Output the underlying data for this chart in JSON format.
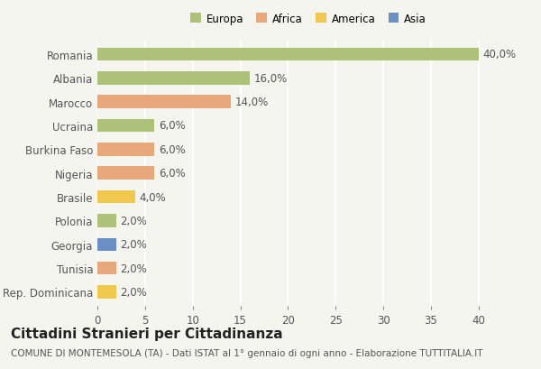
{
  "countries": [
    "Romania",
    "Albania",
    "Marocco",
    "Ucraina",
    "Burkina Faso",
    "Nigeria",
    "Brasile",
    "Polonia",
    "Georgia",
    "Tunisia",
    "Rep. Dominicana"
  ],
  "values": [
    40.0,
    16.0,
    14.0,
    6.0,
    6.0,
    6.0,
    4.0,
    2.0,
    2.0,
    2.0,
    2.0
  ],
  "categories": [
    "Europa",
    "Europa",
    "Africa",
    "Europa",
    "Africa",
    "Africa",
    "America",
    "Europa",
    "Asia",
    "Africa",
    "America"
  ],
  "colors": {
    "Europa": "#adc178",
    "Africa": "#e8a87c",
    "America": "#f0c84e",
    "Asia": "#6b8fc4"
  },
  "legend_order": [
    "Europa",
    "Africa",
    "America",
    "Asia"
  ],
  "title": "Cittadini Stranieri per Cittadinanza",
  "subtitle": "COMUNE DI MONTEMESOLA (TA) - Dati ISTAT al 1° gennaio di ogni anno - Elaborazione TUTTITALIA.IT",
  "xlim": [
    0,
    42
  ],
  "xticks": [
    0,
    5,
    10,
    15,
    20,
    25,
    30,
    35,
    40
  ],
  "background_color": "#f5f5f0",
  "grid_color": "#ffffff",
  "bar_height": 0.55,
  "label_fontsize": 8.5,
  "title_fontsize": 11,
  "subtitle_fontsize": 7.5
}
